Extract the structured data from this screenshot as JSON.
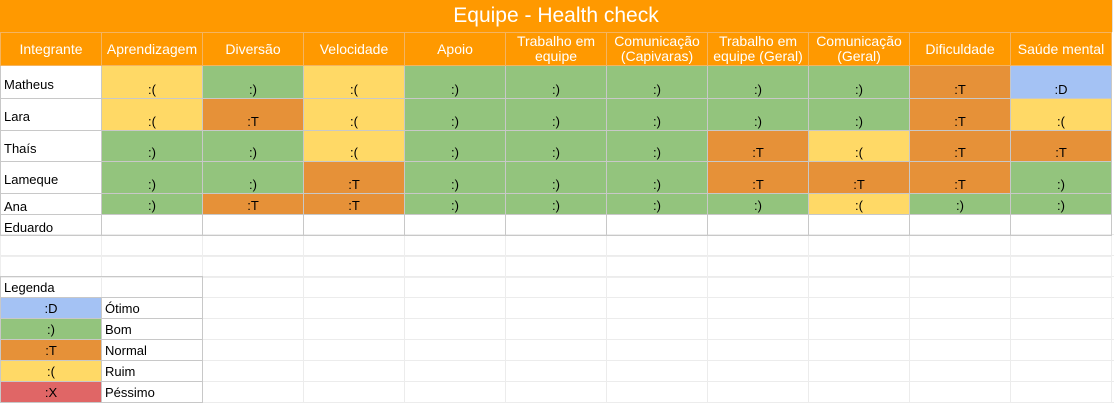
{
  "title": "Equipe - Health check",
  "colors": {
    "header_bg": "#ff9900",
    "otimo": "#a4c2f4",
    "bom": "#93c47d",
    "normal": "#e69138",
    "ruim": "#ffd966",
    "pessimo": "#e06666"
  },
  "columns": [
    "Integrante",
    "Aprendizagem",
    "Diversão",
    "Velocidade",
    "Apoio",
    "Trabalho em equipe",
    "Comunicação (Capivaras)",
    "Trabalho em equipe (Geral)",
    "Comunicação (Geral)",
    "Dificuldade",
    "Saúde mental"
  ],
  "rows": [
    {
      "name": "Matheus",
      "values": [
        ":(",
        ":)",
        ":(",
        ":)",
        ":)",
        ":)",
        ":)",
        ":)",
        ":T",
        ":D"
      ]
    },
    {
      "name": "Lara",
      "values": [
        ":(",
        ":T",
        ":(",
        ":)",
        ":)",
        ":)",
        ":)",
        ":)",
        ":T",
        ":("
      ]
    },
    {
      "name": "Thaís",
      "values": [
        ":)",
        ":)",
        ":(",
        ":)",
        ":)",
        ":)",
        ":T",
        ":(",
        ":T",
        ":T"
      ]
    },
    {
      "name": "Lameque",
      "values": [
        ":)",
        ":)",
        ":T",
        ":)",
        ":)",
        ":)",
        ":T",
        ":T",
        ":T",
        ":)"
      ]
    },
    {
      "name": "Ana",
      "values": [
        ":)",
        ":T",
        ":T",
        ":)",
        ":)",
        ":)",
        ":)",
        ":(",
        ":)",
        ":)"
      ]
    },
    {
      "name": "Eduardo",
      "values": [
        "",
        "",
        "",
        "",
        "",
        "",
        "",
        "",
        "",
        ""
      ]
    }
  ],
  "legend": {
    "title": "Legenda",
    "items": [
      {
        "symbol": ":D",
        "label": "Ótimo"
      },
      {
        "symbol": ":)",
        "label": "Bom"
      },
      {
        "symbol": ":T",
        "label": "Normal"
      },
      {
        "symbol": ":(",
        "label": "Ruim"
      },
      {
        "symbol": ":X",
        "label": "Péssimo"
      }
    ]
  }
}
